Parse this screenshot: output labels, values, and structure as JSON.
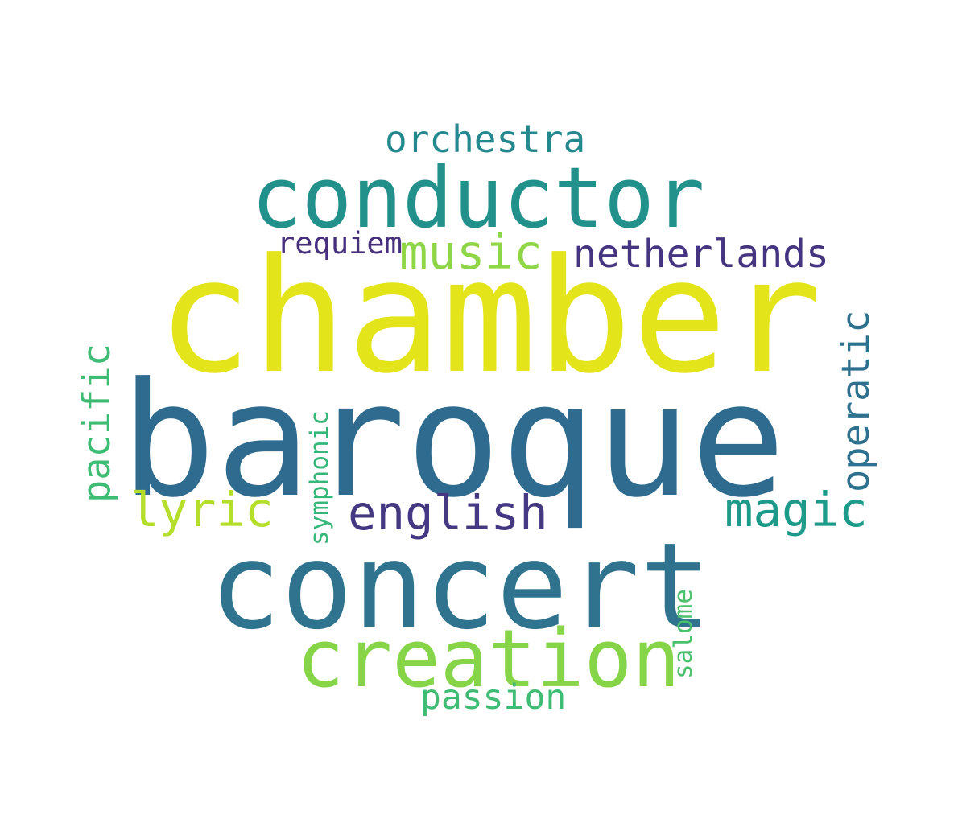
{
  "words": {
    "chamber": {
      "text": "chamber",
      "color": "#e4e41a"
    },
    "baroque": {
      "text": "baroque",
      "color": "#2f6b8e"
    },
    "concert": {
      "text": "concert",
      "color": "#2f738e"
    },
    "conductor": {
      "text": "conductor",
      "color": "#23918b"
    },
    "creation": {
      "text": "creation",
      "color": "#86d549"
    },
    "netherlands": {
      "text": "netherlands",
      "color": "#453581"
    },
    "english": {
      "text": "english",
      "color": "#453882"
    },
    "magic": {
      "text": "magic",
      "color": "#1e9a8a"
    },
    "music": {
      "text": "music",
      "color": "#8ed645"
    },
    "lyric": {
      "text": "lyric",
      "color": "#b5de2b"
    },
    "orchestra": {
      "text": "orchestra",
      "color": "#23898e"
    },
    "passion": {
      "text": "passion",
      "color": "#3fbc73"
    },
    "requiem": {
      "text": "requiem",
      "color": "#46307e"
    },
    "pacific": {
      "text": "pacific",
      "color": "#3fbc73"
    },
    "operatic": {
      "text": "operatic",
      "color": "#2d718e"
    },
    "symphonic": {
      "text": "symphonic",
      "color": "#35b779"
    },
    "salome": {
      "text": "salome",
      "color": "#4ac16d"
    }
  }
}
